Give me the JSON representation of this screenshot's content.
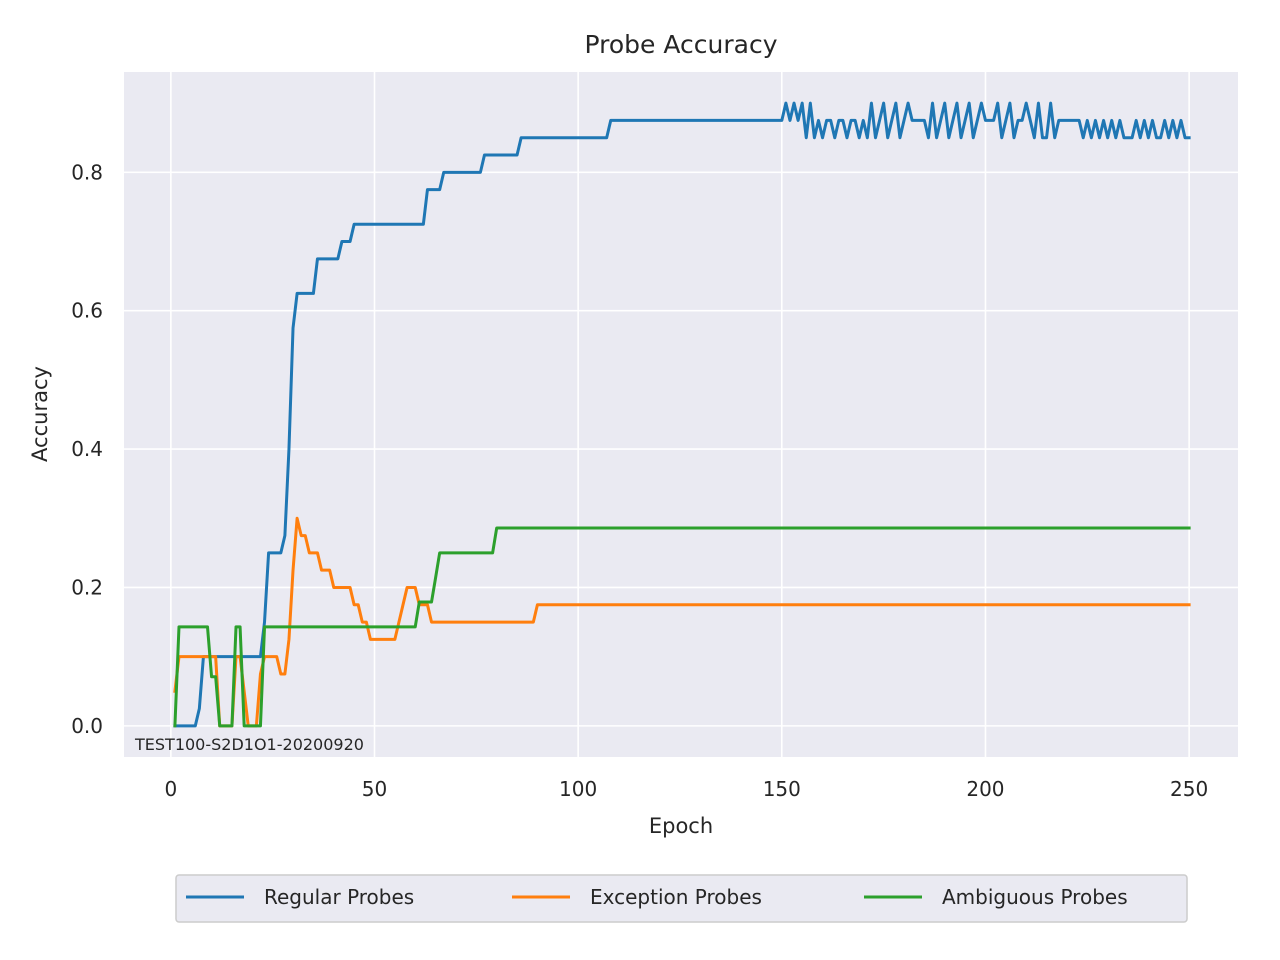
{
  "chart_data": {
    "type": "line",
    "title": "Probe Accuracy",
    "xlabel": "Epoch",
    "ylabel": "Accuracy",
    "xlim": [
      -11.5,
      262
    ],
    "ylim": [
      -0.045,
      0.945
    ],
    "xticks": [
      0,
      50,
      100,
      150,
      200,
      250
    ],
    "yticks": [
      0.0,
      0.2,
      0.4,
      0.6,
      0.8
    ],
    "grid": true,
    "legend_position": "bottom-center",
    "annotation": "TEST100-S2D1O1-20200920",
    "series": [
      {
        "name": "Regular Probes",
        "color": "#1f77b4",
        "points": [
          [
            1,
            0
          ],
          [
            2,
            0
          ],
          [
            3,
            0
          ],
          [
            4,
            0
          ],
          [
            5,
            0
          ],
          [
            6,
            0
          ],
          [
            7,
            0.025
          ],
          [
            8,
            0.1
          ],
          [
            9,
            0.1
          ],
          [
            20,
            0.1
          ],
          [
            21,
            0.1
          ],
          [
            22,
            0.1
          ],
          [
            23,
            0.15
          ],
          [
            24,
            0.25
          ],
          [
            25,
            0.25
          ],
          [
            26,
            0.25
          ],
          [
            27,
            0.25
          ],
          [
            28,
            0.275
          ],
          [
            29,
            0.4
          ],
          [
            30,
            0.575
          ],
          [
            31,
            0.625
          ],
          [
            35,
            0.625
          ],
          [
            36,
            0.675
          ],
          [
            41,
            0.675
          ],
          [
            42,
            0.7
          ],
          [
            44,
            0.7
          ],
          [
            45,
            0.725
          ],
          [
            62,
            0.725
          ],
          [
            63,
            0.775
          ],
          [
            66,
            0.775
          ],
          [
            67,
            0.8
          ],
          [
            76,
            0.8
          ],
          [
            77,
            0.825
          ],
          [
            85,
            0.825
          ],
          [
            86,
            0.85
          ],
          [
            107,
            0.85
          ],
          [
            108,
            0.875
          ],
          [
            150,
            0.875
          ],
          [
            151,
            0.9
          ],
          [
            152,
            0.875
          ],
          [
            153,
            0.9
          ],
          [
            154,
            0.875
          ],
          [
            155,
            0.9
          ],
          [
            156,
            0.85
          ],
          [
            157,
            0.9
          ],
          [
            158,
            0.85
          ],
          [
            159,
            0.875
          ],
          [
            160,
            0.85
          ],
          [
            161,
            0.875
          ],
          [
            162,
            0.875
          ],
          [
            163,
            0.85
          ],
          [
            164,
            0.875
          ],
          [
            165,
            0.875
          ],
          [
            166,
            0.85
          ],
          [
            167,
            0.875
          ],
          [
            168,
            0.875
          ],
          [
            169,
            0.85
          ],
          [
            170,
            0.875
          ],
          [
            171,
            0.85
          ],
          [
            172,
            0.9
          ],
          [
            173,
            0.85
          ],
          [
            174,
            0.875
          ],
          [
            175,
            0.9
          ],
          [
            176,
            0.85
          ],
          [
            177,
            0.875
          ],
          [
            178,
            0.9
          ],
          [
            179,
            0.85
          ],
          [
            180,
            0.875
          ],
          [
            181,
            0.9
          ],
          [
            182,
            0.875
          ],
          [
            185,
            0.875
          ],
          [
            186,
            0.85
          ],
          [
            187,
            0.9
          ],
          [
            188,
            0.85
          ],
          [
            189,
            0.875
          ],
          [
            190,
            0.9
          ],
          [
            191,
            0.85
          ],
          [
            192,
            0.875
          ],
          [
            193,
            0.9
          ],
          [
            194,
            0.85
          ],
          [
            195,
            0.875
          ],
          [
            196,
            0.9
          ],
          [
            197,
            0.85
          ],
          [
            198,
            0.875
          ],
          [
            199,
            0.9
          ],
          [
            200,
            0.875
          ],
          [
            202,
            0.875
          ],
          [
            203,
            0.9
          ],
          [
            204,
            0.85
          ],
          [
            205,
            0.875
          ],
          [
            206,
            0.9
          ],
          [
            207,
            0.85
          ],
          [
            208,
            0.875
          ],
          [
            209,
            0.875
          ],
          [
            210,
            0.9
          ],
          [
            211,
            0.875
          ],
          [
            212,
            0.85
          ],
          [
            213,
            0.9
          ],
          [
            214,
            0.85
          ],
          [
            215,
            0.85
          ],
          [
            216,
            0.9
          ],
          [
            217,
            0.85
          ],
          [
            218,
            0.875
          ],
          [
            223,
            0.875
          ],
          [
            224,
            0.85
          ],
          [
            225,
            0.875
          ],
          [
            226,
            0.85
          ],
          [
            227,
            0.875
          ],
          [
            228,
            0.85
          ],
          [
            229,
            0.875
          ],
          [
            230,
            0.85
          ],
          [
            231,
            0.875
          ],
          [
            232,
            0.85
          ],
          [
            233,
            0.875
          ],
          [
            234,
            0.85
          ],
          [
            235,
            0.85
          ],
          [
            236,
            0.85
          ],
          [
            237,
            0.875
          ],
          [
            238,
            0.85
          ],
          [
            239,
            0.875
          ],
          [
            240,
            0.85
          ],
          [
            241,
            0.875
          ],
          [
            242,
            0.85
          ],
          [
            243,
            0.85
          ],
          [
            244,
            0.875
          ],
          [
            245,
            0.85
          ],
          [
            246,
            0.875
          ],
          [
            247,
            0.85
          ],
          [
            248,
            0.875
          ],
          [
            249,
            0.85
          ],
          [
            250,
            0.85
          ]
        ]
      },
      {
        "name": "Exception Probes",
        "color": "#ff7f0e",
        "points": [
          [
            1,
            0.05
          ],
          [
            2,
            0.1
          ],
          [
            11,
            0.1
          ],
          [
            12,
            0
          ],
          [
            13,
            0
          ],
          [
            14,
            0
          ],
          [
            15,
            0
          ],
          [
            16,
            0.1
          ],
          [
            17,
            0.1
          ],
          [
            18,
            0.05
          ],
          [
            19,
            0
          ],
          [
            20,
            0
          ],
          [
            21,
            0
          ],
          [
            22,
            0.075
          ],
          [
            23,
            0.1
          ],
          [
            26,
            0.1
          ],
          [
            27,
            0.075
          ],
          [
            28,
            0.075
          ],
          [
            29,
            0.125
          ],
          [
            30,
            0.225
          ],
          [
            31,
            0.3
          ],
          [
            32,
            0.275
          ],
          [
            33,
            0.275
          ],
          [
            34,
            0.25
          ],
          [
            36,
            0.25
          ],
          [
            37,
            0.225
          ],
          [
            39,
            0.225
          ],
          [
            40,
            0.2
          ],
          [
            44,
            0.2
          ],
          [
            45,
            0.175
          ],
          [
            46,
            0.175
          ],
          [
            47,
            0.15
          ],
          [
            48,
            0.15
          ],
          [
            49,
            0.125
          ],
          [
            55,
            0.125
          ],
          [
            56,
            0.15
          ],
          [
            57,
            0.175
          ],
          [
            58,
            0.2
          ],
          [
            60,
            0.2
          ],
          [
            61,
            0.175
          ],
          [
            63,
            0.175
          ],
          [
            64,
            0.15
          ],
          [
            89,
            0.15
          ],
          [
            90,
            0.175
          ],
          [
            250,
            0.175
          ]
        ]
      },
      {
        "name": "Ambiguous Probes",
        "color": "#2ca02c",
        "points": [
          [
            1,
            0
          ],
          [
            2,
            0.143
          ],
          [
            9,
            0.143
          ],
          [
            10,
            0.071
          ],
          [
            11,
            0.071
          ],
          [
            12,
            0
          ],
          [
            13,
            0
          ],
          [
            14,
            0
          ],
          [
            15,
            0
          ],
          [
            16,
            0.143
          ],
          [
            17,
            0.143
          ],
          [
            18,
            0
          ],
          [
            19,
            0
          ],
          [
            20,
            0
          ],
          [
            21,
            0
          ],
          [
            22,
            0
          ],
          [
            23,
            0.143
          ],
          [
            60,
            0.143
          ],
          [
            61,
            0.179
          ],
          [
            64,
            0.179
          ],
          [
            65,
            0.214
          ],
          [
            66,
            0.25
          ],
          [
            79,
            0.25
          ],
          [
            80,
            0.286
          ],
          [
            250,
            0.286
          ]
        ]
      }
    ]
  }
}
